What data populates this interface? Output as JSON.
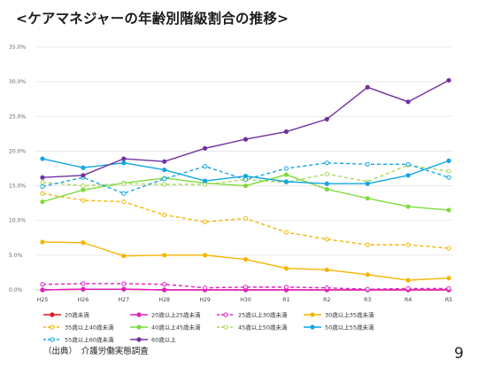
{
  "title": "<ケアマネジャーの年齢別階級割合の推移>",
  "source": "（出典）　介護労働実態調査",
  "page_number": "9",
  "chart_data": {
    "type": "line",
    "categories": [
      "H25",
      "H26",
      "H27",
      "H28",
      "H29",
      "H30",
      "R1",
      "R2",
      "R3",
      "R4",
      "R5"
    ],
    "y_ticks": [
      "0.0%",
      "5.0%",
      "10.0%",
      "15.0%",
      "20.0%",
      "25.0%",
      "30.0%",
      "35.0%"
    ],
    "ylim": [
      0,
      35
    ],
    "grid": true,
    "legend_position": "bottom",
    "series": [
      {
        "name": "20歳未満",
        "color": "#e8141e",
        "dashed": false,
        "hollow": false,
        "values": [
          0.0,
          0.1,
          0.1,
          0.0,
          0.0,
          0.0,
          0.0,
          0.0,
          0.0,
          0.0,
          0.0
        ]
      },
      {
        "name": "20歳以上25歳未満",
        "color": "#e020c0",
        "dashed": false,
        "hollow": false,
        "values": [
          0.0,
          0.1,
          0.1,
          0.0,
          0.0,
          0.0,
          0.0,
          0.0,
          0.0,
          0.0,
          0.0
        ]
      },
      {
        "name": "25歳以上30歳未満",
        "color": "#e020c0",
        "dashed": true,
        "hollow": true,
        "values": [
          0.8,
          0.9,
          0.9,
          0.8,
          0.3,
          0.4,
          0.4,
          0.3,
          0.1,
          0.2,
          0.2
        ]
      },
      {
        "name": "30歳以上35歳未満",
        "color": "#f5b400",
        "dashed": false,
        "hollow": false,
        "values": [
          6.9,
          6.8,
          4.9,
          5.0,
          5.0,
          4.4,
          3.1,
          2.9,
          2.2,
          1.4,
          1.7
        ]
      },
      {
        "name": "35歳以上40歳未満",
        "color": "#f5b400",
        "dashed": true,
        "hollow": true,
        "values": [
          13.9,
          12.9,
          12.7,
          10.8,
          9.8,
          10.3,
          8.3,
          7.3,
          6.5,
          6.5,
          6.0
        ]
      },
      {
        "name": "40歳以上45歳未満",
        "color": "#7ddc3a",
        "dashed": false,
        "hollow": false,
        "values": [
          12.7,
          14.4,
          15.4,
          16.1,
          15.4,
          15.0,
          16.6,
          14.5,
          13.2,
          12.0,
          11.5
        ]
      },
      {
        "name": "45歳以上50歳未満",
        "color": "#a8d85a",
        "dashed": true,
        "hollow": true,
        "values": [
          15.5,
          15.0,
          15.3,
          15.2,
          15.2,
          15.9,
          15.5,
          16.7,
          15.6,
          18.0,
          17.1
        ]
      },
      {
        "name": "50歳以上55歳未満",
        "color": "#12a6e0",
        "dashed": false,
        "hollow": false,
        "values": [
          18.9,
          17.6,
          18.3,
          17.3,
          15.7,
          16.4,
          15.6,
          15.3,
          15.3,
          16.5,
          18.6
        ]
      },
      {
        "name": "55歳以上60歳未満",
        "color": "#12a6e0",
        "dashed": true,
        "hollow": true,
        "values": [
          14.9,
          16.2,
          13.9,
          16.0,
          17.8,
          15.9,
          17.5,
          18.3,
          18.1,
          18.1,
          16.2
        ]
      },
      {
        "name": "60歳以上",
        "color": "#7030a0",
        "dashed": false,
        "hollow": false,
        "values": [
          16.2,
          16.5,
          18.9,
          18.5,
          20.4,
          21.7,
          22.8,
          24.6,
          29.2,
          27.1,
          30.2
        ]
      }
    ]
  }
}
